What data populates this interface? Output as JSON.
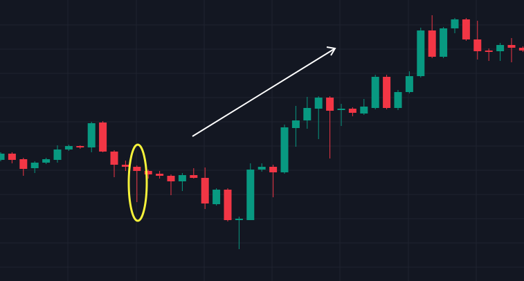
{
  "chart_data": {
    "type": "candlestick",
    "open": [
      175,
      184,
      176,
      163,
      171,
      175,
      190,
      195,
      193,
      229,
      187,
      168,
      165,
      159,
      155,
      152,
      144,
      153,
      149,
      111,
      132,
      88,
      88,
      161,
      165,
      157,
      221,
      232,
      249,
      265,
      247,
      249,
      242,
      250,
      295,
      250,
      273,
      296,
      362,
      324,
      365,
      378,
      349,
      333,
      332,
      341,
      337
    ],
    "high": [
      186,
      186,
      178,
      173,
      178,
      196,
      197,
      196,
      230,
      231,
      189,
      174,
      167,
      161,
      159,
      154,
      156,
      163,
      164,
      134,
      134,
      93,
      170,
      170,
      168,
      226,
      253,
      266,
      267,
      267,
      256,
      251,
      263,
      298,
      298,
      276,
      303,
      366,
      384,
      367,
      380,
      380,
      376,
      336,
      344,
      351,
      339
    ],
    "low": [
      173,
      170,
      152,
      156,
      169,
      171,
      188,
      191,
      186,
      186,
      150,
      159,
      114,
      148,
      148,
      124,
      130,
      148,
      104,
      109,
      86,
      46,
      88,
      158,
      121,
      155,
      194,
      220,
      205,
      177,
      224,
      238,
      240,
      248,
      248,
      247,
      271,
      294,
      322,
      322,
      358,
      347,
      320,
      318,
      318,
      316,
      331
    ],
    "close": [
      184,
      175,
      162,
      171,
      176,
      190,
      195,
      193,
      228,
      187,
      168,
      165,
      159,
      154,
      152,
      144,
      153,
      149,
      112,
      132,
      88,
      90,
      161,
      165,
      157,
      222,
      232,
      250,
      265,
      246,
      249,
      243,
      252,
      295,
      250,
      273,
      296,
      362,
      324,
      365,
      378,
      349,
      332,
      331,
      341,
      337,
      333
    ],
    "up_color": "#089981",
    "down_color": "#f23645",
    "ylim": [
      0,
      406
    ]
  }
}
